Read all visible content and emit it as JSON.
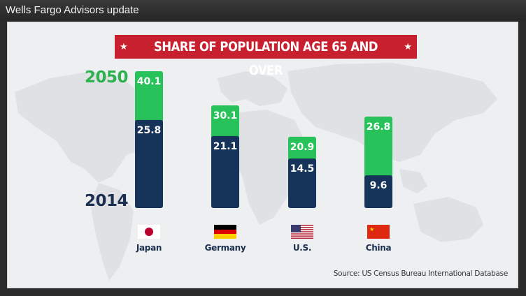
{
  "window": {
    "title": "Wells Fargo Advisors update"
  },
  "chart_data": {
    "type": "bar",
    "title": "SHARE OF POPULATION AGE 65 AND OVER",
    "categories": [
      "Japan",
      "Germany",
      "U.S.",
      "China"
    ],
    "series": [
      {
        "name": "2014",
        "values": [
          25.8,
          21.1,
          14.5,
          9.6
        ],
        "color": "#16345a"
      },
      {
        "name": "2050",
        "values": [
          40.1,
          30.1,
          20.9,
          26.8
        ],
        "color": "#27c35a"
      }
    ],
    "ylim": [
      0,
      40.1
    ],
    "grid": false,
    "legend": "left",
    "source": "Source: US Census Bureau International Database"
  },
  "colors": {
    "banner": "#c8202f",
    "navy": "#16345a",
    "green": "#27c35a",
    "year_green": "#2eb24f"
  },
  "flags": [
    "japan-flag-icon",
    "germany-flag-icon",
    "us-flag-icon",
    "china-flag-icon"
  ]
}
